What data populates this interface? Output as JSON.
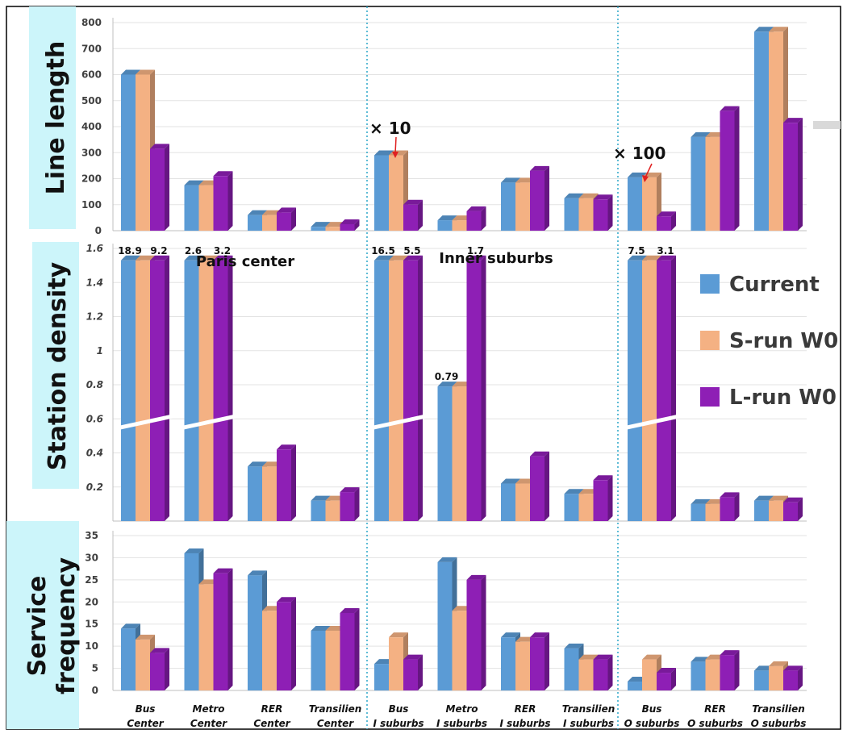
{
  "categories": [
    [
      "Bus",
      "Center"
    ],
    [
      "Metro",
      "Center"
    ],
    [
      "RER",
      "Center"
    ],
    [
      "Transilien",
      "Center"
    ],
    [
      "Bus",
      "I suburbs"
    ],
    [
      "Metro",
      "I suburbs"
    ],
    [
      "RER",
      "I suburbs"
    ],
    [
      "Transilien",
      "I suburbs"
    ],
    [
      "Bus",
      "O suburbs"
    ],
    [
      "RER",
      "O suburbs"
    ],
    [
      "Transilien",
      "O suburbs"
    ]
  ],
  "legend": [
    {
      "name": "Current",
      "color": "#5b9bd5"
    },
    {
      "name": "S-run W0",
      "color": "#f4b183"
    },
    {
      "name": "L-run W0",
      "color": "#8e1fb5"
    }
  ],
  "region_labels": [
    "Paris center",
    "Inner suburbs"
  ],
  "chart_data": [
    {
      "type": "bar",
      "title": "Line length",
      "ylim": [
        0,
        800
      ],
      "yticks": [
        "0",
        "100",
        "200",
        "300",
        "400",
        "500",
        "600",
        "700",
        "800"
      ],
      "annotations": [
        "× 10",
        "× 100"
      ],
      "series": [
        {
          "name": "Current",
          "values": [
            600,
            175,
            60,
            15,
            290,
            40,
            185,
            125,
            205,
            360,
            765
          ]
        },
        {
          "name": "S-run W0",
          "values": [
            600,
            175,
            60,
            15,
            290,
            40,
            185,
            125,
            205,
            360,
            765
          ]
        },
        {
          "name": "L-run W0",
          "values": [
            315,
            210,
            70,
            25,
            100,
            75,
            230,
            120,
            55,
            460,
            415
          ]
        }
      ]
    },
    {
      "type": "bar",
      "title": "Station density",
      "ylim": [
        0,
        1.6
      ],
      "yticks": [
        "0.2",
        "0.4",
        "0.6",
        "0.8",
        "1",
        "1.2",
        "1.4",
        "1.6"
      ],
      "axis_break": true,
      "data_labels": [
        [
          "18.9",
          "",
          "9.2"
        ],
        [
          "2.6",
          "",
          "3.2"
        ],
        [
          "",
          "",
          ""
        ],
        [
          "",
          "",
          ""
        ],
        [
          "16.5",
          "",
          "5.5"
        ],
        [
          "0.79",
          "",
          "1.7"
        ],
        [
          "",
          "",
          ""
        ],
        [
          "",
          "",
          ""
        ],
        [
          "7.5",
          "",
          "3.1"
        ],
        [
          "",
          "",
          ""
        ],
        [
          "",
          "",
          ""
        ]
      ],
      "series": [
        {
          "name": "Current",
          "values": [
            18.9,
            2.6,
            0.32,
            0.12,
            16.5,
            0.79,
            0.22,
            0.16,
            7.5,
            0.08,
            0.12
          ]
        },
        {
          "name": "S-run W0",
          "values": [
            18.9,
            2.6,
            0.32,
            0.12,
            16.5,
            0.79,
            0.22,
            0.16,
            7.5,
            0.08,
            0.12
          ]
        },
        {
          "name": "L-run W0",
          "values": [
            9.2,
            3.2,
            0.42,
            0.17,
            5.5,
            1.7,
            0.38,
            0.24,
            3.1,
            0.14,
            0.11
          ]
        }
      ]
    },
    {
      "type": "bar",
      "title": [
        "Service",
        "frequency"
      ],
      "ylim": [
        0,
        35
      ],
      "yticks": [
        "0",
        "5",
        "10",
        "15",
        "20",
        "25",
        "30",
        "35"
      ],
      "series": [
        {
          "name": "Current",
          "values": [
            14,
            31,
            26,
            13.5,
            6,
            29,
            12,
            9.5,
            2,
            6.5,
            4.5
          ]
        },
        {
          "name": "S-run W0",
          "values": [
            11.5,
            24,
            18,
            13.5,
            12,
            18,
            11,
            7,
            7,
            7,
            5.5
          ]
        },
        {
          "name": "L-run W0",
          "values": [
            8.5,
            26.5,
            20,
            17.5,
            7,
            25,
            12,
            7,
            4,
            8,
            4.5
          ]
        }
      ]
    }
  ]
}
